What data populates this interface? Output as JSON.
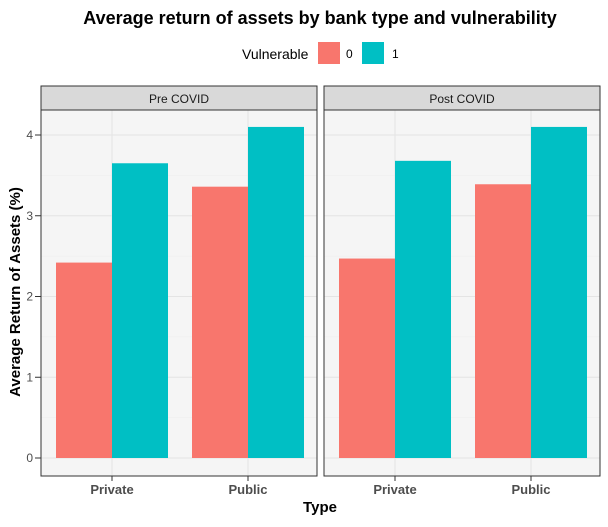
{
  "chart_data": {
    "type": "bar",
    "title": "Average return of assets by bank type and vulnerability",
    "xlabel": "Type",
    "ylabel": "Average Return of Assets (%)",
    "ylim": [
      0,
      4.25
    ],
    "yticks": [
      0,
      1,
      2,
      3,
      4
    ],
    "categories": [
      "Private",
      "Public"
    ],
    "legend": {
      "title": "Vulnerable",
      "placement": "top",
      "entries": [
        {
          "label": "0",
          "color": "#F8766D"
        },
        {
          "label": "1",
          "color": "#00BFC4"
        }
      ]
    },
    "grid": true,
    "facets": [
      {
        "label": "Pre COVID",
        "series": [
          {
            "name": "0",
            "values": [
              2.42,
              3.36
            ]
          },
          {
            "name": "1",
            "values": [
              3.65,
              4.1
            ]
          }
        ]
      },
      {
        "label": "Post COVID",
        "series": [
          {
            "name": "0",
            "values": [
              2.47,
              3.39
            ]
          },
          {
            "name": "1",
            "values": [
              3.68,
              4.1
            ]
          }
        ]
      }
    ],
    "colors": {
      "panel_bg": "#EBEBEB",
      "strip_bg": "#D9D9D9",
      "grid_major": "#FFFFFF",
      "panel_border": "#333333"
    }
  }
}
